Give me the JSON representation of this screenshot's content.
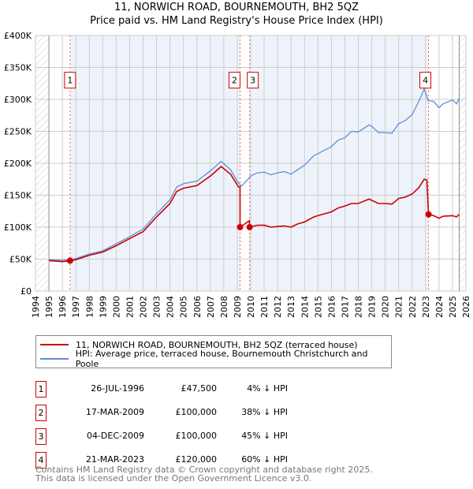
{
  "chart_data": {
    "type": "line",
    "title": "11, NORWICH ROAD, BOURNEMOUTH, BH2 5QZ",
    "subtitle": "Price paid vs. HM Land Registry's House Price Index (HPI)",
    "xlim": [
      1994,
      2026
    ],
    "ylim": [
      0,
      400000
    ],
    "x_ticks": [
      "1994",
      "1995",
      "1996",
      "1997",
      "1998",
      "1999",
      "2000",
      "2001",
      "2002",
      "2003",
      "2004",
      "2005",
      "2006",
      "2007",
      "2008",
      "2009",
      "2010",
      "2011",
      "2012",
      "2013",
      "2014",
      "2015",
      "2016",
      "2017",
      "2018",
      "2019",
      "2020",
      "2021",
      "2022",
      "2023",
      "2024",
      "2025",
      "2026"
    ],
    "y_ticks": [
      {
        "v": 0,
        "label": "£0"
      },
      {
        "v": 50000,
        "label": "£50K"
      },
      {
        "v": 100000,
        "label": "£100K"
      },
      {
        "v": 150000,
        "label": "£150K"
      },
      {
        "v": 200000,
        "label": "£200K"
      },
      {
        "v": 250000,
        "label": "£250K"
      },
      {
        "v": 300000,
        "label": "£300K"
      },
      {
        "v": 350000,
        "label": "£350K"
      },
      {
        "v": 400000,
        "label": "£400K"
      }
    ],
    "series": [
      {
        "name": "HPI: Average price, terraced house, Bournemouth Christchurch and Poole",
        "color": "#5b8fd4",
        "x": [
          1995,
          1996,
          1996.6,
          1997,
          1998,
          1999,
          2000,
          2001,
          2002,
          2003,
          2004,
          2004.5,
          2005,
          2006,
          2007,
          2007.8,
          2008.5,
          2009,
          2009.3,
          2009.8,
          2010,
          2010.5,
          2011,
          2011.5,
          2012,
          2012.5,
          2013,
          2013.5,
          2014,
          2014.7,
          2015,
          2016,
          2016.5,
          2017,
          2017.5,
          2018,
          2018.8,
          2019,
          2019.5,
          2020,
          2020.5,
          2021,
          2021.5,
          2022,
          2022.5,
          2022.9,
          2023.2,
          2023.6,
          2024,
          2024.3,
          2025,
          2025.3,
          2025.5
        ],
        "y": [
          49000,
          48000,
          49000,
          51000,
          58000,
          63000,
          74000,
          85000,
          97000,
          121000,
          143000,
          163000,
          168000,
          172000,
          188000,
          203000,
          190000,
          172000,
          164000,
          175000,
          180000,
          185000,
          186000,
          182000,
          185000,
          187000,
          183000,
          190000,
          197000,
          212000,
          215000,
          226000,
          236000,
          240000,
          250000,
          249000,
          260000,
          258000,
          248000,
          248000,
          247000,
          262000,
          267000,
          276000,
          297000,
          316000,
          298000,
          297000,
          287000,
          293000,
          299000,
          293000,
          302000
        ]
      },
      {
        "name": "11, NORWICH ROAD, BOURNEMOUTH, BH2 5QZ (terraced house)",
        "color": "#cc0000",
        "x": [
          1995,
          1996,
          1996.57,
          1997,
          1998,
          1999,
          2000,
          2001,
          2002,
          2003,
          2004,
          2004.5,
          2005,
          2006,
          2007,
          2007.8,
          2008.5,
          2009.1,
          2009.21,
          2009.21,
          2009.9,
          2009.92,
          2010.5,
          2011,
          2011.5,
          2012,
          2012.5,
          2013,
          2013.5,
          2014,
          2014.7,
          2015,
          2016,
          2016.5,
          2017,
          2017.5,
          2018,
          2018.8,
          2019,
          2019.5,
          2020,
          2020.5,
          2021,
          2021.5,
          2022,
          2022.5,
          2022.9,
          2023.1,
          2023.22,
          2023.6,
          2024,
          2024.3,
          2025,
          2025.3,
          2025.5
        ],
        "y": [
          47500,
          46000,
          47500,
          49000,
          56000,
          61000,
          71000,
          82000,
          93000,
          116000,
          137000,
          156000,
          161000,
          165000,
          180000,
          195000,
          183000,
          163000,
          163000,
          100000,
          110000,
          100000,
          103000,
          103000,
          100000,
          101000,
          102000,
          100000,
          105000,
          108000,
          116000,
          118000,
          124000,
          130000,
          133000,
          137000,
          137000,
          144000,
          142000,
          137000,
          137000,
          136000,
          145000,
          147000,
          152000,
          162000,
          175000,
          174000,
          120000,
          118000,
          114000,
          117000,
          118000,
          116000,
          120000
        ]
      }
    ],
    "sales": [
      {
        "id": "1",
        "x": 1996.57,
        "price": 47500,
        "date": "26-JUL-1996",
        "price_label": "£47,500",
        "hpi": "4% ↓ HPI"
      },
      {
        "id": "2",
        "x": 2009.21,
        "price": 100000,
        "date": "17-MAR-2009",
        "price_label": "£100,000",
        "hpi": "38% ↓ HPI"
      },
      {
        "id": "3",
        "x": 2009.92,
        "price": 100000,
        "date": "04-DEC-2009",
        "price_label": "£100,000",
        "hpi": "45% ↓ HPI"
      },
      {
        "id": "4",
        "x": 2023.22,
        "price": 120000,
        "date": "21-MAR-2023",
        "price_label": "£120,000",
        "hpi": "60% ↓ HPI"
      }
    ],
    "legend": {
      "position": "bottom"
    }
  },
  "footer": {
    "line1": "Contains HM Land Registry data © Crown copyright and database right 2025.",
    "line2": "This data is licensed under the Open Government Licence v3.0."
  }
}
